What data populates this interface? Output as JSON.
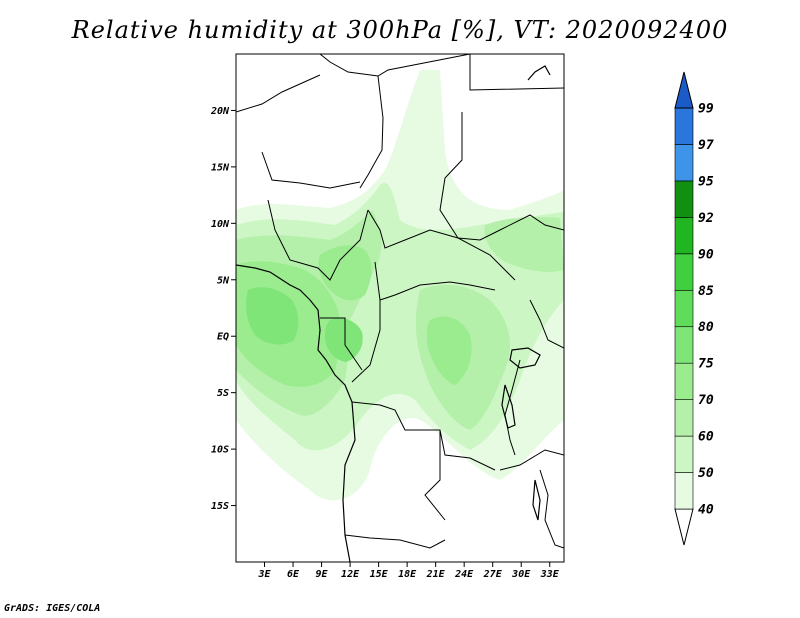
{
  "title": "Relative humidity at 300hPa [%], VT: 2020092400",
  "credit": "GrADS: IGES/COLA",
  "map": {
    "lat_ticks": [
      {
        "lat": 20,
        "label": "20N"
      },
      {
        "lat": 15,
        "label": "15N"
      },
      {
        "lat": 10,
        "label": "10N"
      },
      {
        "lat": 5,
        "label": "5N"
      },
      {
        "lat": 0,
        "label": "EQ"
      },
      {
        "lat": -5,
        "label": "5S"
      },
      {
        "lat": -10,
        "label": "10S"
      },
      {
        "lat": -15,
        "label": "15S"
      }
    ],
    "lon_ticks": [
      {
        "lon": 3,
        "label": "3E"
      },
      {
        "lon": 6,
        "label": "6E"
      },
      {
        "lon": 9,
        "label": "9E"
      },
      {
        "lon": 12,
        "label": "12E"
      },
      {
        "lon": 15,
        "label": "15E"
      },
      {
        "lon": 18,
        "label": "18E"
      },
      {
        "lon": 21,
        "label": "21E"
      },
      {
        "lon": 24,
        "label": "24E"
      },
      {
        "lon": 27,
        "label": "27E"
      },
      {
        "lon": 30,
        "label": "30E"
      },
      {
        "lon": 33,
        "label": "33E"
      }
    ],
    "extent": {
      "lon_min": 0,
      "lon_max": 34.5,
      "lat_min": -20,
      "lat_max": 25
    }
  },
  "colorbar": {
    "levels": [
      "40",
      "50",
      "60",
      "70",
      "75",
      "80",
      "85",
      "90",
      "92",
      "95",
      "97",
      "99"
    ],
    "colors": [
      "#ffffff",
      "#e6fbe2",
      "#cdf6c5",
      "#b4f0aa",
      "#9aec8f",
      "#7fe578",
      "#5fdc5a",
      "#3fcf3f",
      "#22b522",
      "#118f11",
      "#3d94e8",
      "#2a76dc",
      "#1a5bc8"
    ]
  }
}
